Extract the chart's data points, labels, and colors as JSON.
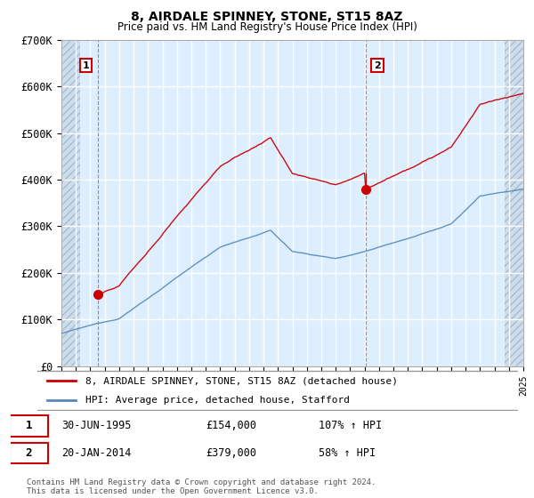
{
  "title": "8, AIRDALE SPINNEY, STONE, ST15 8AZ",
  "subtitle": "Price paid vs. HM Land Registry's House Price Index (HPI)",
  "ylim": [
    0,
    700000
  ],
  "yticks": [
    0,
    100000,
    200000,
    300000,
    400000,
    500000,
    600000,
    700000
  ],
  "ytick_labels": [
    "£0",
    "£100K",
    "£200K",
    "£300K",
    "£400K",
    "£500K",
    "£600K",
    "£700K"
  ],
  "sale1_x": 1995.5,
  "sale1_y": 154000,
  "sale2_x": 2014.08,
  "sale2_y": 379000,
  "legend_line1": "8, AIRDALE SPINNEY, STONE, ST15 8AZ (detached house)",
  "legend_line2": "HPI: Average price, detached house, Stafford",
  "table_row1": [
    "1",
    "30-JUN-1995",
    "£154,000",
    "107% ↑ HPI"
  ],
  "table_row2": [
    "2",
    "20-JAN-2014",
    "£379,000",
    "58% ↑ HPI"
  ],
  "footer": "Contains HM Land Registry data © Crown copyright and database right 2024.\nThis data is licensed under the Open Government Licence v3.0.",
  "line_color_red": "#cc0000",
  "line_color_blue": "#5588bb",
  "vline_color": "#cc4444",
  "bg_color": "#ddeeff",
  "xmin": 1993,
  "xmax": 2025
}
